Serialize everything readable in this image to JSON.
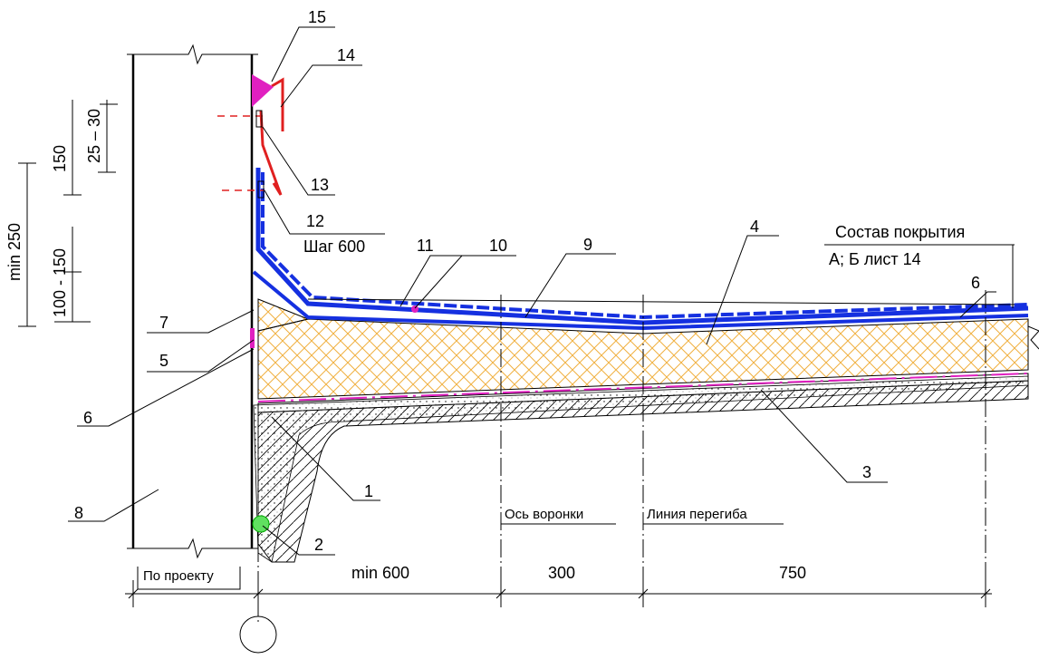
{
  "callouts": [
    {
      "label": "1"
    },
    {
      "label": "2"
    },
    {
      "label": "3"
    },
    {
      "label": "4"
    },
    {
      "label": "5"
    },
    {
      "label": "6"
    },
    {
      "label": "6"
    },
    {
      "label": "7"
    },
    {
      "label": "8"
    },
    {
      "label": "9"
    },
    {
      "label": "10"
    },
    {
      "label": "11"
    },
    {
      "label": "12"
    },
    {
      "label": "13"
    },
    {
      "label": "14"
    },
    {
      "label": "15"
    }
  ],
  "notes": {
    "step": "Шаг 600",
    "roof_composition": "Состав покрытия",
    "roof_reference": "А; Б лист 14",
    "drain_axis": "Ось воронки",
    "bend_line": "Линия перегиба"
  },
  "dimensions": {
    "horizontal": [
      "По проекту",
      "min 600",
      "300",
      "750"
    ],
    "vertical": [
      "min 250",
      "150",
      "25 – 30",
      "100 - 150"
    ]
  }
}
